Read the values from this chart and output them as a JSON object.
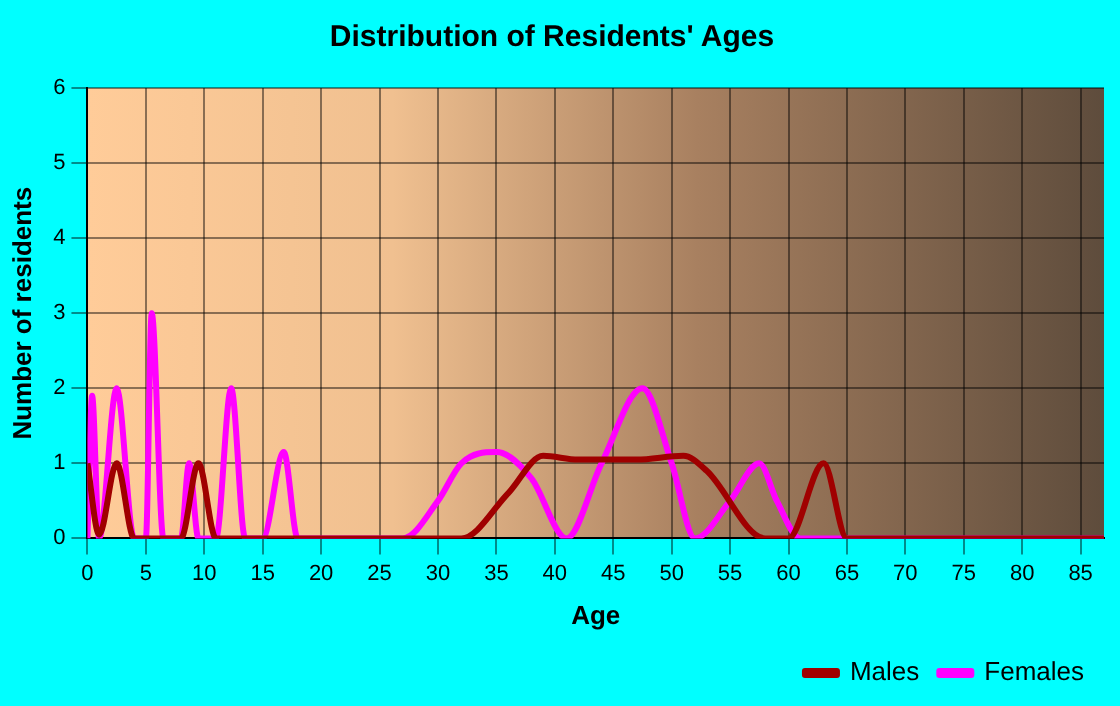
{
  "chart_data": {
    "type": "line",
    "title": "Distribution of Residents' Ages",
    "xlabel": "Age",
    "ylabel": "Number of residents",
    "xlim": [
      0,
      87
    ],
    "xticks": [
      0,
      5,
      10,
      15,
      20,
      25,
      30,
      35,
      40,
      45,
      50,
      55,
      60,
      65,
      70,
      75,
      80,
      85
    ],
    "ylim": [
      0,
      6
    ],
    "yticks": [
      0,
      1,
      2,
      3,
      4,
      5,
      6
    ],
    "grid": true,
    "legend": "bottom right",
    "series": [
      {
        "name": "Males",
        "color": "#a00000",
        "x": [
          0,
          1,
          2.5,
          4,
          8,
          9.5,
          11,
          30,
          32,
          36,
          39,
          42,
          47,
          51,
          53,
          58,
          60,
          63,
          65,
          87
        ],
        "values": [
          1,
          0.05,
          1,
          0,
          0,
          1,
          0,
          0,
          0,
          0.6,
          1.1,
          1.05,
          1.05,
          1.1,
          0.9,
          0,
          0,
          1,
          0,
          0
        ]
      },
      {
        "name": "Females",
        "color": "#ff00ff",
        "x": [
          0,
          0.4,
          1,
          2.5,
          4,
          5,
          5.5,
          6.5,
          8,
          8.7,
          9.5,
          11,
          12.3,
          13.5,
          15,
          16.8,
          18,
          27,
          30,
          32,
          35,
          38,
          41,
          44,
          47.5,
          50,
          52,
          55,
          57.5,
          59,
          61,
          87
        ],
        "values": [
          0,
          1.9,
          0,
          2,
          0,
          0,
          3,
          0,
          0,
          1,
          0,
          0,
          2,
          0,
          0,
          1.15,
          0,
          0,
          0.5,
          1,
          1.15,
          0.8,
          0,
          1,
          2,
          1,
          0,
          0.5,
          1,
          0.5,
          0,
          0
        ]
      }
    ]
  }
}
